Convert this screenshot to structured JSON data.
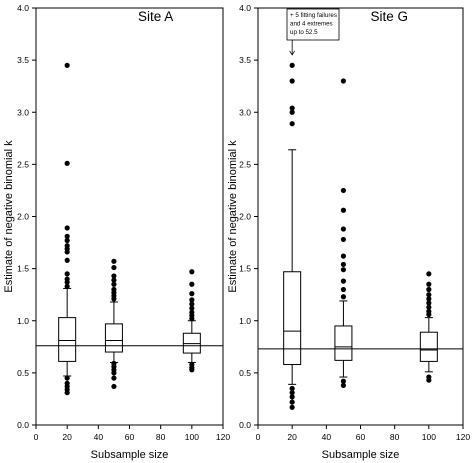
{
  "chart_data": [
    {
      "type": "box",
      "title": "Site A",
      "xlabel": "Subsample size",
      "ylabel": "Estimate of negative binomial k",
      "xlim": [
        0,
        120
      ],
      "ylim": [
        0,
        4.0
      ],
      "xticks": [
        0,
        20,
        40,
        60,
        80,
        100,
        120
      ],
      "yticks": [
        "0.0",
        "0.5",
        "1.0",
        "1.5",
        "2.0",
        "2.5",
        "3.0",
        "3.5",
        "4.0"
      ],
      "reference_line": 0.76,
      "boxes": [
        {
          "x": 20,
          "whisker_low": 0.47,
          "q1": 0.61,
          "median": 0.81,
          "q3": 1.03,
          "whisker_high": 1.31,
          "outliers": [
            0.31,
            0.34,
            0.37,
            0.4,
            0.45,
            1.33,
            1.37,
            1.4,
            1.45,
            1.58,
            1.66,
            1.69,
            1.72,
            1.77,
            1.81,
            1.89,
            2.51,
            3.45
          ]
        },
        {
          "x": 50,
          "whisker_low": 0.6,
          "q1": 0.7,
          "median": 0.81,
          "q3": 0.97,
          "whisker_high": 1.18,
          "outliers": [
            0.37,
            0.45,
            0.5,
            0.53,
            0.56,
            0.59,
            1.21,
            1.24,
            1.27,
            1.3,
            1.35,
            1.39,
            1.43,
            1.51,
            1.57
          ]
        },
        {
          "x": 100,
          "whisker_low": 0.6,
          "q1": 0.69,
          "median": 0.78,
          "q3": 0.88,
          "whisker_high": 1.0,
          "outliers": [
            0.53,
            0.55,
            0.58,
            1.02,
            1.05,
            1.08,
            1.12,
            1.16,
            1.2,
            1.26,
            1.35,
            1.47
          ]
        }
      ]
    },
    {
      "type": "box",
      "title": "Site G",
      "xlabel": "Subsample size",
      "ylabel": "Estimate of negative binomial k",
      "xlim": [
        0,
        120
      ],
      "ylim": [
        0,
        4.0
      ],
      "xticks": [
        0,
        20,
        40,
        60,
        80,
        100,
        120
      ],
      "yticks": [
        "0.0",
        "0.5",
        "1.0",
        "1.5",
        "2.0",
        "2.5",
        "3.0",
        "3.5",
        "4.0"
      ],
      "reference_line": 0.73,
      "annotation": {
        "lines": [
          "+ 5 fitting failures",
          "and 4 extremes",
          "up to 52.5"
        ],
        "x": 20,
        "arrow_to_y": 3.55
      },
      "boxes": [
        {
          "x": 20,
          "whisker_low": 0.39,
          "q1": 0.58,
          "median": 0.9,
          "q3": 1.47,
          "whisker_high": 2.64,
          "outliers": [
            0.17,
            0.22,
            0.27,
            0.31,
            0.35,
            2.89,
            3.0,
            3.04,
            3.3,
            3.45
          ]
        },
        {
          "x": 50,
          "whisker_low": 0.46,
          "q1": 0.62,
          "median": 0.75,
          "q3": 0.95,
          "whisker_high": 1.19,
          "outliers": [
            0.38,
            0.42,
            1.23,
            1.3,
            1.38,
            1.49,
            1.54,
            1.62,
            1.78,
            1.88,
            2.06,
            2.25,
            3.3
          ]
        },
        {
          "x": 100,
          "whisker_low": 0.51,
          "q1": 0.61,
          "median": 0.72,
          "q3": 0.89,
          "whisker_high": 1.03,
          "outliers": [
            0.43,
            0.46,
            1.06,
            1.09,
            1.13,
            1.17,
            1.21,
            1.25,
            1.3,
            1.35,
            1.45
          ]
        }
      ]
    }
  ]
}
